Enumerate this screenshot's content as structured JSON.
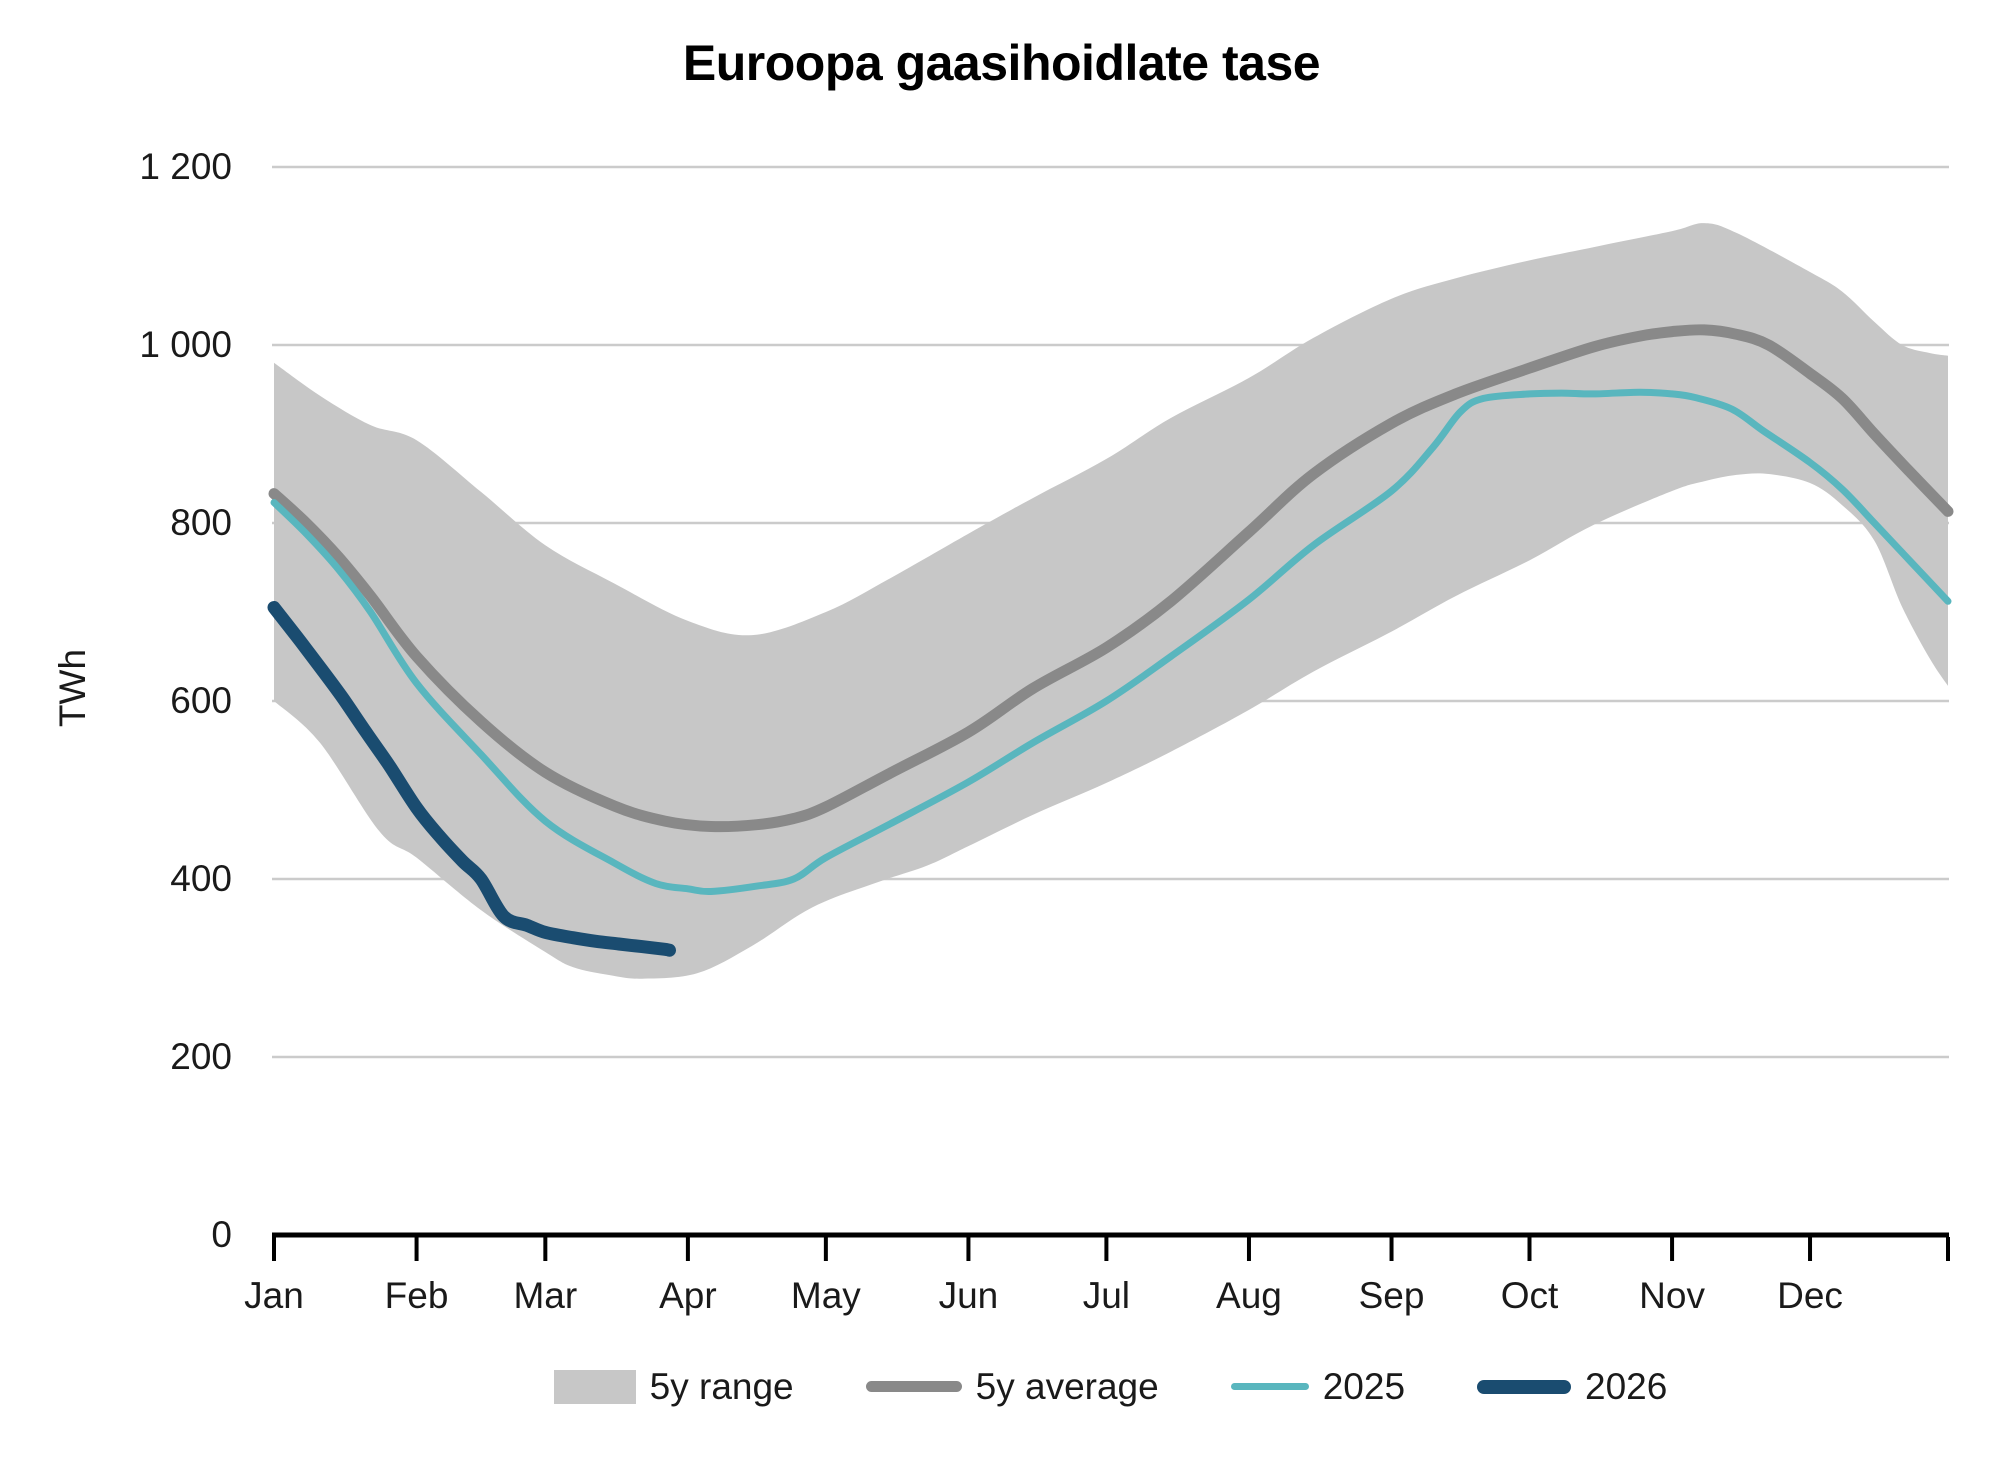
{
  "title": "Euroopa gaasihoidlate tase",
  "chart_data": {
    "type": "line",
    "title": "Euroopa gaasihoidlate tase",
    "xlabel": "",
    "ylabel": "TWh",
    "ylim": [
      0,
      1200
    ],
    "grid": "horizontal",
    "legend_position": "bottom-center",
    "x_unit": "day_of_year",
    "x_axis": {
      "month_labels": [
        "Jan",
        "Feb",
        "Mar",
        "Apr",
        "May",
        "Jun",
        "Jul",
        "Aug",
        "Sep",
        "Oct",
        "Nov",
        "Dec"
      ],
      "month_start_days": [
        0,
        31,
        59,
        90,
        120,
        151,
        181,
        212,
        243,
        273,
        304,
        334
      ],
      "end_day": 364
    },
    "y_ticks": [
      {
        "value": 0,
        "label": "0"
      },
      {
        "value": 200,
        "label": "200"
      },
      {
        "value": 400,
        "label": "400"
      },
      {
        "value": 600,
        "label": "600"
      },
      {
        "value": 800,
        "label": "800"
      },
      {
        "value": 1000,
        "label": "1 000"
      },
      {
        "value": 1200,
        "label": "1 200"
      }
    ],
    "colors": {
      "band": "#c7c7c7",
      "average": "#898989",
      "y2025": "#59b6be",
      "y2026": "#1a4c70",
      "gridline": "#cbcbcb",
      "axis": "#000000",
      "text": "#1a1a1a"
    },
    "legend": [
      {
        "label": "5y range",
        "type": "band",
        "color": "#c7c7c7"
      },
      {
        "label": "5y average",
        "type": "line",
        "color": "#898989"
      },
      {
        "label": "2025",
        "type": "line",
        "color": "#59b6be"
      },
      {
        "label": "2026",
        "type": "line",
        "color": "#1a4c70"
      }
    ],
    "series": [
      {
        "name": "5y range",
        "type": "band",
        "color": "#c7c7c7",
        "upper": [
          [
            0,
            980
          ],
          [
            10,
            943
          ],
          [
            21,
            910
          ],
          [
            31,
            893
          ],
          [
            45,
            835
          ],
          [
            59,
            775
          ],
          [
            74,
            732
          ],
          [
            90,
            690
          ],
          [
            104,
            674
          ],
          [
            120,
            700
          ],
          [
            134,
            738
          ],
          [
            151,
            788
          ],
          [
            165,
            828
          ],
          [
            181,
            872
          ],
          [
            195,
            918
          ],
          [
            212,
            963
          ],
          [
            226,
            1008
          ],
          [
            243,
            1052
          ],
          [
            257,
            1075
          ],
          [
            273,
            1095
          ],
          [
            287,
            1110
          ],
          [
            304,
            1128
          ],
          [
            311,
            1137
          ],
          [
            318,
            1126
          ],
          [
            334,
            1082
          ],
          [
            341,
            1060
          ],
          [
            348,
            1026
          ],
          [
            354,
            1000
          ],
          [
            360,
            991
          ],
          [
            364,
            988
          ]
        ],
        "lower": [
          [
            0,
            600
          ],
          [
            10,
            553
          ],
          [
            23,
            453
          ],
          [
            31,
            424
          ],
          [
            45,
            365
          ],
          [
            59,
            318
          ],
          [
            65,
            301
          ],
          [
            73,
            292
          ],
          [
            80,
            288
          ],
          [
            92,
            294
          ],
          [
            104,
            325
          ],
          [
            117,
            368
          ],
          [
            131,
            396
          ],
          [
            142,
            415
          ],
          [
            151,
            437
          ],
          [
            165,
            472
          ],
          [
            181,
            508
          ],
          [
            195,
            543
          ],
          [
            212,
            590
          ],
          [
            226,
            633
          ],
          [
            243,
            678
          ],
          [
            257,
            718
          ],
          [
            273,
            758
          ],
          [
            287,
            798
          ],
          [
            304,
            836
          ],
          [
            311,
            847
          ],
          [
            318,
            854
          ],
          [
            325,
            855
          ],
          [
            334,
            845
          ],
          [
            341,
            820
          ],
          [
            348,
            780
          ],
          [
            354,
            706
          ],
          [
            360,
            648
          ],
          [
            364,
            617
          ]
        ]
      },
      {
        "name": "5y average",
        "type": "line",
        "color": "#898989",
        "stroke_width": 11,
        "points": [
          [
            0,
            833
          ],
          [
            7,
            800
          ],
          [
            14,
            762
          ],
          [
            21,
            718
          ],
          [
            31,
            650
          ],
          [
            45,
            577
          ],
          [
            59,
            520
          ],
          [
            74,
            482
          ],
          [
            85,
            465
          ],
          [
            95,
            459
          ],
          [
            105,
            461
          ],
          [
            113,
            468
          ],
          [
            120,
            481
          ],
          [
            134,
            519
          ],
          [
            151,
            565
          ],
          [
            165,
            614
          ],
          [
            181,
            660
          ],
          [
            195,
            712
          ],
          [
            212,
            790
          ],
          [
            226,
            855
          ],
          [
            243,
            912
          ],
          [
            257,
            945
          ],
          [
            273,
            974
          ],
          [
            287,
            998
          ],
          [
            297,
            1010
          ],
          [
            304,
            1015
          ],
          [
            311,
            1017
          ],
          [
            318,
            1012
          ],
          [
            325,
            1000
          ],
          [
            334,
            968
          ],
          [
            341,
            940
          ],
          [
            348,
            900
          ],
          [
            356,
            856
          ],
          [
            364,
            813
          ]
        ]
      },
      {
        "name": "2025",
        "type": "line",
        "color": "#59b6be",
        "stroke_width": 7,
        "points": [
          [
            0,
            823
          ],
          [
            7,
            788
          ],
          [
            14,
            748
          ],
          [
            21,
            700
          ],
          [
            31,
            620
          ],
          [
            45,
            540
          ],
          [
            59,
            465
          ],
          [
            74,
            418
          ],
          [
            83,
            395
          ],
          [
            90,
            389
          ],
          [
            95,
            386
          ],
          [
            105,
            392
          ],
          [
            113,
            400
          ],
          [
            120,
            424
          ],
          [
            134,
            462
          ],
          [
            151,
            509
          ],
          [
            165,
            553
          ],
          [
            181,
            600
          ],
          [
            195,
            650
          ],
          [
            212,
            714
          ],
          [
            226,
            775
          ],
          [
            243,
            836
          ],
          [
            252,
            885
          ],
          [
            258,
            925
          ],
          [
            263,
            940
          ],
          [
            273,
            945
          ],
          [
            280,
            946
          ],
          [
            287,
            945
          ],
          [
            297,
            947
          ],
          [
            304,
            945
          ],
          [
            309,
            941
          ],
          [
            317,
            928
          ],
          [
            324,
            903
          ],
          [
            334,
            868
          ],
          [
            341,
            838
          ],
          [
            348,
            800
          ],
          [
            356,
            756
          ],
          [
            364,
            712
          ]
        ]
      },
      {
        "name": "2026",
        "type": "line",
        "color": "#1a4c70",
        "stroke_width": 13,
        "points": [
          [
            0,
            705
          ],
          [
            5,
            672
          ],
          [
            10,
            638
          ],
          [
            15,
            603
          ],
          [
            20,
            565
          ],
          [
            25,
            528
          ],
          [
            31,
            480
          ],
          [
            36,
            448
          ],
          [
            41,
            420
          ],
          [
            45,
            400
          ],
          [
            50,
            358
          ],
          [
            55,
            348
          ],
          [
            59,
            340
          ],
          [
            65,
            334
          ],
          [
            70,
            330
          ],
          [
            75,
            327
          ],
          [
            80,
            324
          ],
          [
            85,
            321
          ],
          [
            86,
            320
          ]
        ]
      }
    ]
  }
}
